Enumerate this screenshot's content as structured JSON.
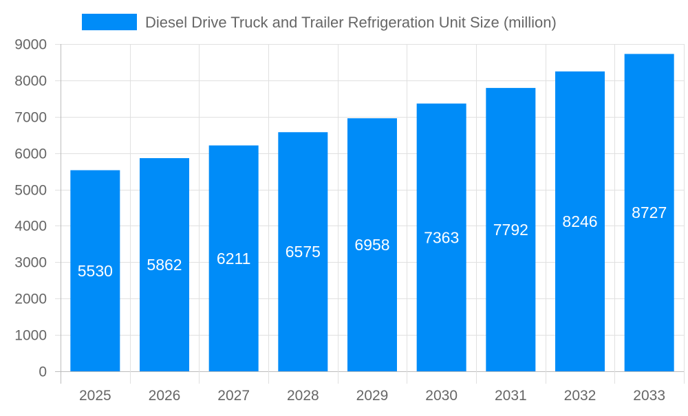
{
  "chart_data": {
    "type": "bar",
    "title": "",
    "xlabel": "",
    "ylabel": "",
    "categories": [
      "2025",
      "2026",
      "2027",
      "2028",
      "2029",
      "2030",
      "2031",
      "2032",
      "2033"
    ],
    "series": [
      {
        "name": "Diesel Drive Truck and Trailer Refrigeration Unit Size (million)",
        "values": [
          5530,
          5862,
          6211,
          6575,
          6958,
          7363,
          7792,
          8246,
          8727
        ],
        "color": "#008cf8"
      }
    ],
    "ylim": [
      0,
      9000
    ],
    "yticks": [
      0,
      1000,
      2000,
      3000,
      4000,
      5000,
      6000,
      7000,
      8000,
      9000
    ],
    "grid": true,
    "legend_position": "top",
    "data_labels": true
  }
}
